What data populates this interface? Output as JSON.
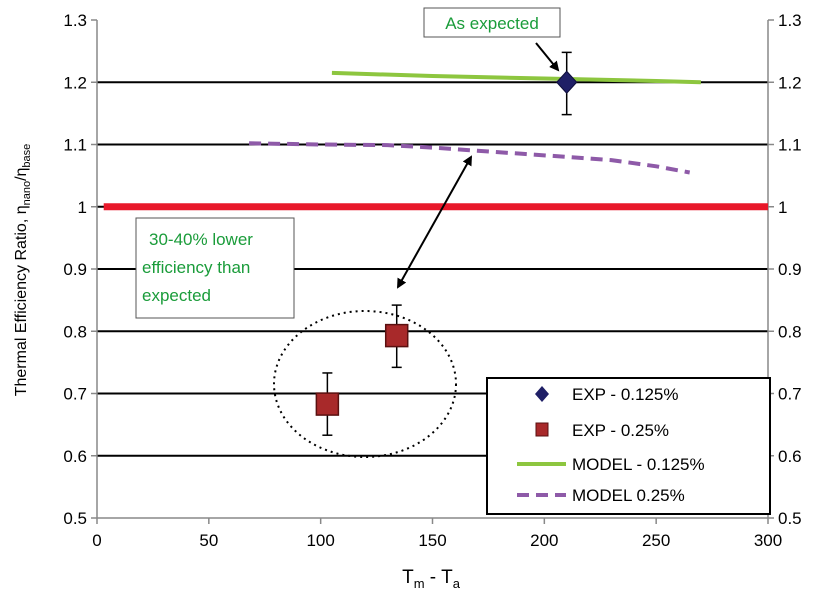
{
  "chart_data": {
    "type": "scatter",
    "xlabel": {
      "main": "T",
      "sub_m": "m",
      "sep": " - T",
      "sub_a": "a"
    },
    "ylabel": {
      "main": "Thermal Efficiency Ratio, η",
      "sub_nano": "nano",
      "slash": "/η",
      "sub_base": "base"
    },
    "xlim": [
      0,
      300
    ],
    "ylim": [
      0.5,
      1.3
    ],
    "x_ticks": [
      "0",
      "50",
      "100",
      "150",
      "200",
      "250",
      "300"
    ],
    "y_ticks": [
      "0.5",
      "0.6",
      "0.7",
      "0.8",
      "0.9",
      "1",
      "1.1",
      "1.2",
      "1.3"
    ],
    "y_ticks_right": [
      "0.5",
      "0.6",
      "0.7",
      "0.8",
      "0.9",
      "1",
      "1.1",
      "1.2",
      "1.3"
    ],
    "grid": "horizontal",
    "legend_position": "bottom-right",
    "reference_line": {
      "y": 1.0,
      "color": "#e8182a"
    },
    "series": [
      {
        "name": "EXP - 0.125%",
        "kind": "marker",
        "marker": "diamond",
        "color": "#1f1f66",
        "points": [
          {
            "x": 210,
            "y": 1.2,
            "yerr_low": 1.148,
            "yerr_high": 1.248
          }
        ]
      },
      {
        "name": "EXP - 0.25%",
        "kind": "marker",
        "marker": "square",
        "color": "#a8292a",
        "points": [
          {
            "x": 103,
            "y": 0.683,
            "yerr_low": 0.633,
            "yerr_high": 0.733
          },
          {
            "x": 134,
            "y": 0.793,
            "yerr_low": 0.742,
            "yerr_high": 0.842
          }
        ]
      },
      {
        "name": "MODEL - 0.125%",
        "kind": "line",
        "dash": "solid",
        "color": "#8dc63f",
        "x": [
          105,
          150,
          200,
          250,
          270
        ],
        "y": [
          1.215,
          1.21,
          1.206,
          1.202,
          1.2
        ]
      },
      {
        "name": "MODEL 0.25%",
        "kind": "line",
        "dash": "dashed",
        "color": "#8e5aa8",
        "x": [
          68,
          100,
          130,
          150,
          170,
          190,
          210,
          230,
          250,
          265
        ],
        "y": [
          1.102,
          1.1,
          1.099,
          1.095,
          1.09,
          1.085,
          1.08,
          1.075,
          1.065,
          1.055
        ]
      }
    ],
    "annotations": [
      {
        "id": "as-expected",
        "text": "As expected"
      },
      {
        "id": "lower-eff",
        "lines": [
          "30-40% lower",
          "efficiency than",
          "expected"
        ]
      }
    ]
  }
}
